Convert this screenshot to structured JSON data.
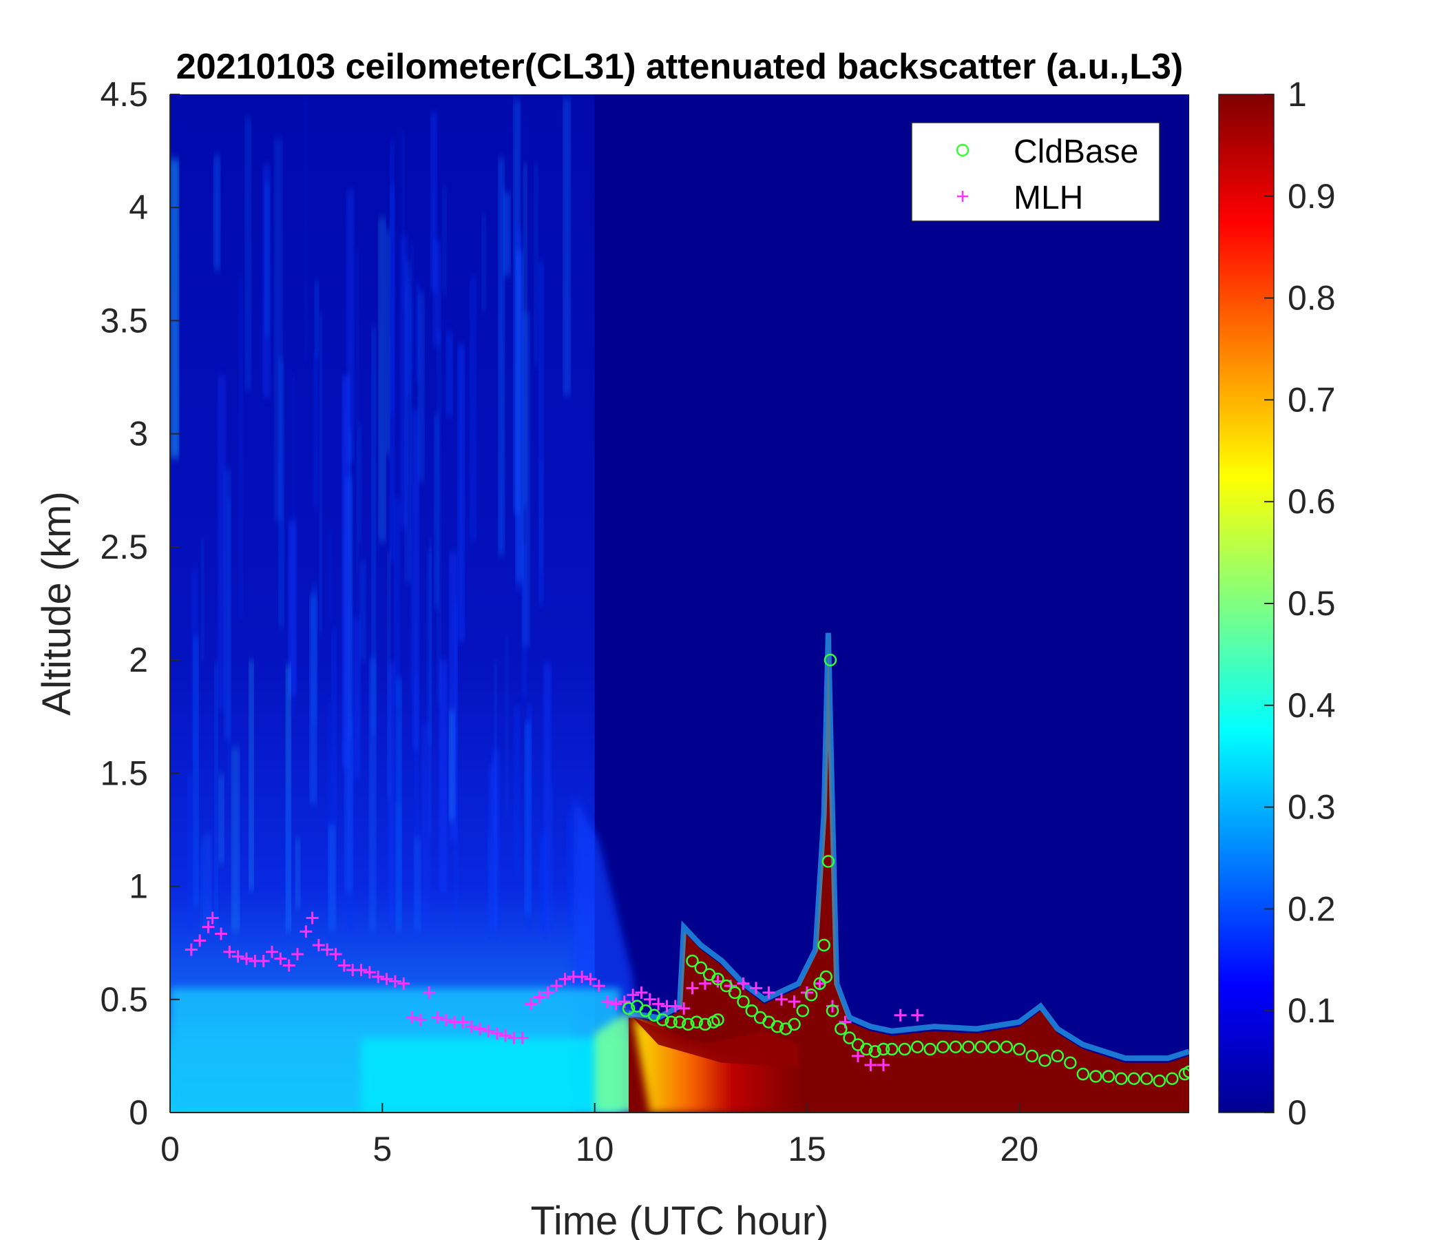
{
  "chart_data": {
    "type": "heatmap",
    "title": "20210103 ceilometer(CL31) attenuated backscatter (a.u.,L3)",
    "xlabel": "Time (UTC hour)",
    "ylabel": "Altitude (km)",
    "xlim": [
      0,
      24
    ],
    "ylim": [
      0,
      4.5
    ],
    "xticks": [
      0,
      5,
      10,
      15,
      20
    ],
    "xtick_labels": [
      "0",
      "5",
      "10",
      "15",
      "20"
    ],
    "yticks": [
      0,
      0.5,
      1,
      1.5,
      2,
      2.5,
      3,
      3.5,
      4,
      4.5
    ],
    "ytick_labels": [
      "0",
      "0.5",
      "1",
      "1.5",
      "2",
      "2.5",
      "3",
      "3.5",
      "4",
      "4.5"
    ],
    "colorbar": {
      "colormap": "jet",
      "range": [
        0,
        1
      ],
      "ticks": [
        0,
        0.1,
        0.2,
        0.3,
        0.4,
        0.5,
        0.6,
        0.7,
        0.8,
        0.9,
        1
      ],
      "tick_labels": [
        "0",
        "0.1",
        "0.2",
        "0.3",
        "0.4",
        "0.5",
        "0.6",
        "0.7",
        "0.8",
        "0.9",
        "1"
      ]
    },
    "colors": {
      "background": "#00008f",
      "cldbase_marker": "#33ff33",
      "mlh_marker": "#ff33ff",
      "jet_stops": [
        "#00008f",
        "#0000ff",
        "#0080ff",
        "#00ffff",
        "#80ff80",
        "#ffff00",
        "#ff8000",
        "#ff0000",
        "#800000"
      ]
    },
    "legend": {
      "location": "top-right",
      "entries": [
        {
          "name": "CldBase",
          "marker": "circle"
        },
        {
          "name": "MLH",
          "marker": "plus"
        }
      ]
    },
    "series": [
      {
        "name": "CldBase",
        "marker": "circle",
        "x": [
          10.8,
          11.0,
          11.2,
          11.4,
          11.6,
          11.8,
          12.0,
          12.2,
          12.4,
          12.6,
          12.8,
          12.9,
          12.3,
          12.5,
          12.7,
          12.9,
          13.1,
          13.3,
          13.5,
          13.7,
          13.9,
          14.1,
          14.3,
          14.5,
          14.7,
          14.9,
          15.1,
          15.3,
          15.4,
          15.5,
          15.55,
          15.45,
          15.6,
          15.8,
          16.0,
          16.2,
          16.4,
          16.6,
          16.8,
          17.0,
          17.3,
          17.6,
          17.9,
          18.2,
          18.5,
          18.8,
          19.1,
          19.4,
          19.7,
          20.0,
          20.3,
          20.6,
          20.9,
          21.2,
          21.5,
          21.8,
          22.1,
          22.4,
          22.7,
          23.0,
          23.3,
          23.6,
          23.9,
          24.0
        ],
        "y": [
          0.46,
          0.47,
          0.45,
          0.43,
          0.41,
          0.4,
          0.4,
          0.39,
          0.4,
          0.39,
          0.4,
          0.41,
          0.67,
          0.64,
          0.61,
          0.59,
          0.56,
          0.53,
          0.49,
          0.45,
          0.42,
          0.4,
          0.38,
          0.37,
          0.39,
          0.45,
          0.52,
          0.57,
          0.74,
          1.11,
          2.0,
          0.6,
          0.45,
          0.37,
          0.33,
          0.3,
          0.28,
          0.27,
          0.28,
          0.28,
          0.28,
          0.29,
          0.28,
          0.29,
          0.29,
          0.29,
          0.29,
          0.29,
          0.29,
          0.28,
          0.25,
          0.23,
          0.25,
          0.22,
          0.17,
          0.16,
          0.16,
          0.15,
          0.15,
          0.15,
          0.14,
          0.15,
          0.17,
          0.18
        ]
      },
      {
        "name": "MLH",
        "marker": "plus",
        "x": [
          0.5,
          0.7,
          0.9,
          1.0,
          1.2,
          1.4,
          1.6,
          1.8,
          2.0,
          2.2,
          2.4,
          2.6,
          2.8,
          3.0,
          3.2,
          3.35,
          3.5,
          3.7,
          3.9,
          4.1,
          4.3,
          4.5,
          4.7,
          4.9,
          5.1,
          5.3,
          5.5,
          5.7,
          5.9,
          6.1,
          6.3,
          6.5,
          6.7,
          6.9,
          7.1,
          7.3,
          7.5,
          7.7,
          7.9,
          8.1,
          8.3,
          8.5,
          8.7,
          8.9,
          9.1,
          9.3,
          9.5,
          9.7,
          9.9,
          10.1,
          10.3,
          10.5,
          10.7,
          10.9,
          11.1,
          11.3,
          11.5,
          11.7,
          11.9,
          12.1,
          12.3,
          12.6,
          12.9,
          13.2,
          13.5,
          13.8,
          14.1,
          14.4,
          14.7,
          15.0,
          15.3,
          15.6,
          15.9,
          16.2,
          16.5,
          16.8,
          17.2,
          17.6
        ],
        "y": [
          0.72,
          0.76,
          0.82,
          0.86,
          0.79,
          0.71,
          0.69,
          0.68,
          0.67,
          0.67,
          0.71,
          0.68,
          0.65,
          0.7,
          0.8,
          0.86,
          0.74,
          0.72,
          0.7,
          0.65,
          0.63,
          0.63,
          0.62,
          0.6,
          0.59,
          0.58,
          0.57,
          0.42,
          0.41,
          0.53,
          0.42,
          0.41,
          0.4,
          0.4,
          0.38,
          0.37,
          0.36,
          0.35,
          0.34,
          0.33,
          0.33,
          0.48,
          0.51,
          0.53,
          0.56,
          0.59,
          0.6,
          0.6,
          0.59,
          0.56,
          0.49,
          0.48,
          0.49,
          0.52,
          0.53,
          0.5,
          0.48,
          0.47,
          0.47,
          0.46,
          0.55,
          0.57,
          0.58,
          0.56,
          0.57,
          0.55,
          0.53,
          0.5,
          0.49,
          0.53,
          0.57,
          0.47,
          0.4,
          0.25,
          0.21,
          0.21,
          0.43,
          0.43
        ]
      }
    ]
  }
}
